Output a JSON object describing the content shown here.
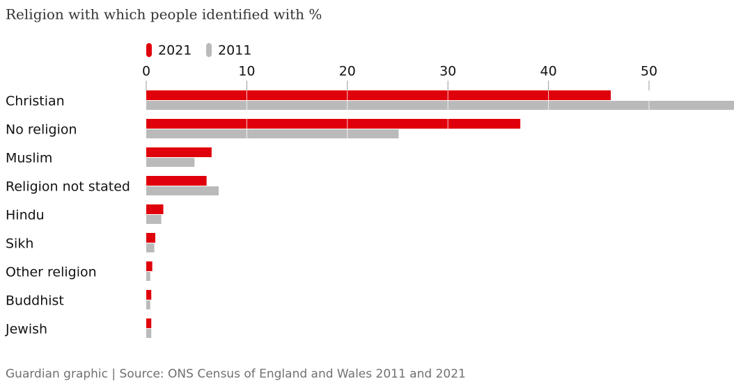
{
  "chart_data": {
    "type": "bar",
    "orientation": "horizontal",
    "title": "Religion with which people identified with %",
    "source": "Guardian graphic | Source: ONS Census of England and Wales 2011 and 2021",
    "categories": [
      "Christian",
      "No religion",
      "Muslim",
      "Religion not stated",
      "Hindu",
      "Sikh",
      "Other religion",
      "Buddhist",
      "Jewish"
    ],
    "series": [
      {
        "name": "2021",
        "color": "#e0000b",
        "values": [
          46.2,
          37.2,
          6.5,
          6.0,
          1.7,
          0.9,
          0.6,
          0.5,
          0.5
        ]
      },
      {
        "name": "2011",
        "color": "#bababa",
        "values": [
          59.3,
          25.1,
          4.8,
          7.2,
          1.5,
          0.8,
          0.4,
          0.4,
          0.5
        ]
      }
    ],
    "xlim": [
      0,
      58.45
    ],
    "xticks": [
      0,
      10,
      20,
      30,
      40,
      50
    ]
  }
}
